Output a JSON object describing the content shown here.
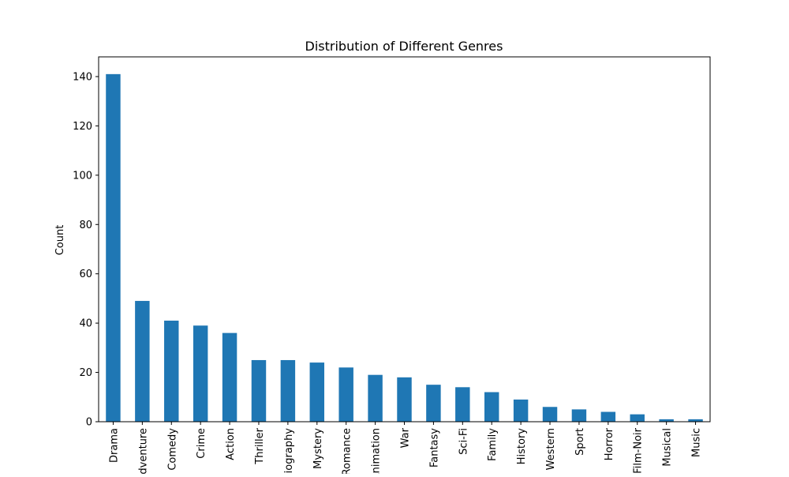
{
  "chart_data": {
    "type": "bar",
    "title": "Distribution of Different Genres",
    "xlabel": "",
    "ylabel": "Count",
    "categories": [
      "Drama",
      "Adventure",
      "Comedy",
      "Crime",
      "Action",
      "Thriller",
      "Biography",
      "Mystery",
      "Romance",
      "Animation",
      "War",
      "Fantasy",
      "Sci-Fi",
      "Family",
      "History",
      "Western",
      "Sport",
      "Horror",
      "Film-Noir",
      "Musical",
      "Music"
    ],
    "values": [
      141,
      49,
      41,
      39,
      36,
      25,
      25,
      24,
      22,
      19,
      18,
      15,
      14,
      12,
      9,
      6,
      5,
      4,
      3,
      1,
      1
    ],
    "ylim": [
      0,
      148
    ],
    "yticks": [
      0,
      20,
      40,
      60,
      80,
      100,
      120,
      140
    ],
    "grid": false,
    "bar_color": "#1f77b4"
  }
}
